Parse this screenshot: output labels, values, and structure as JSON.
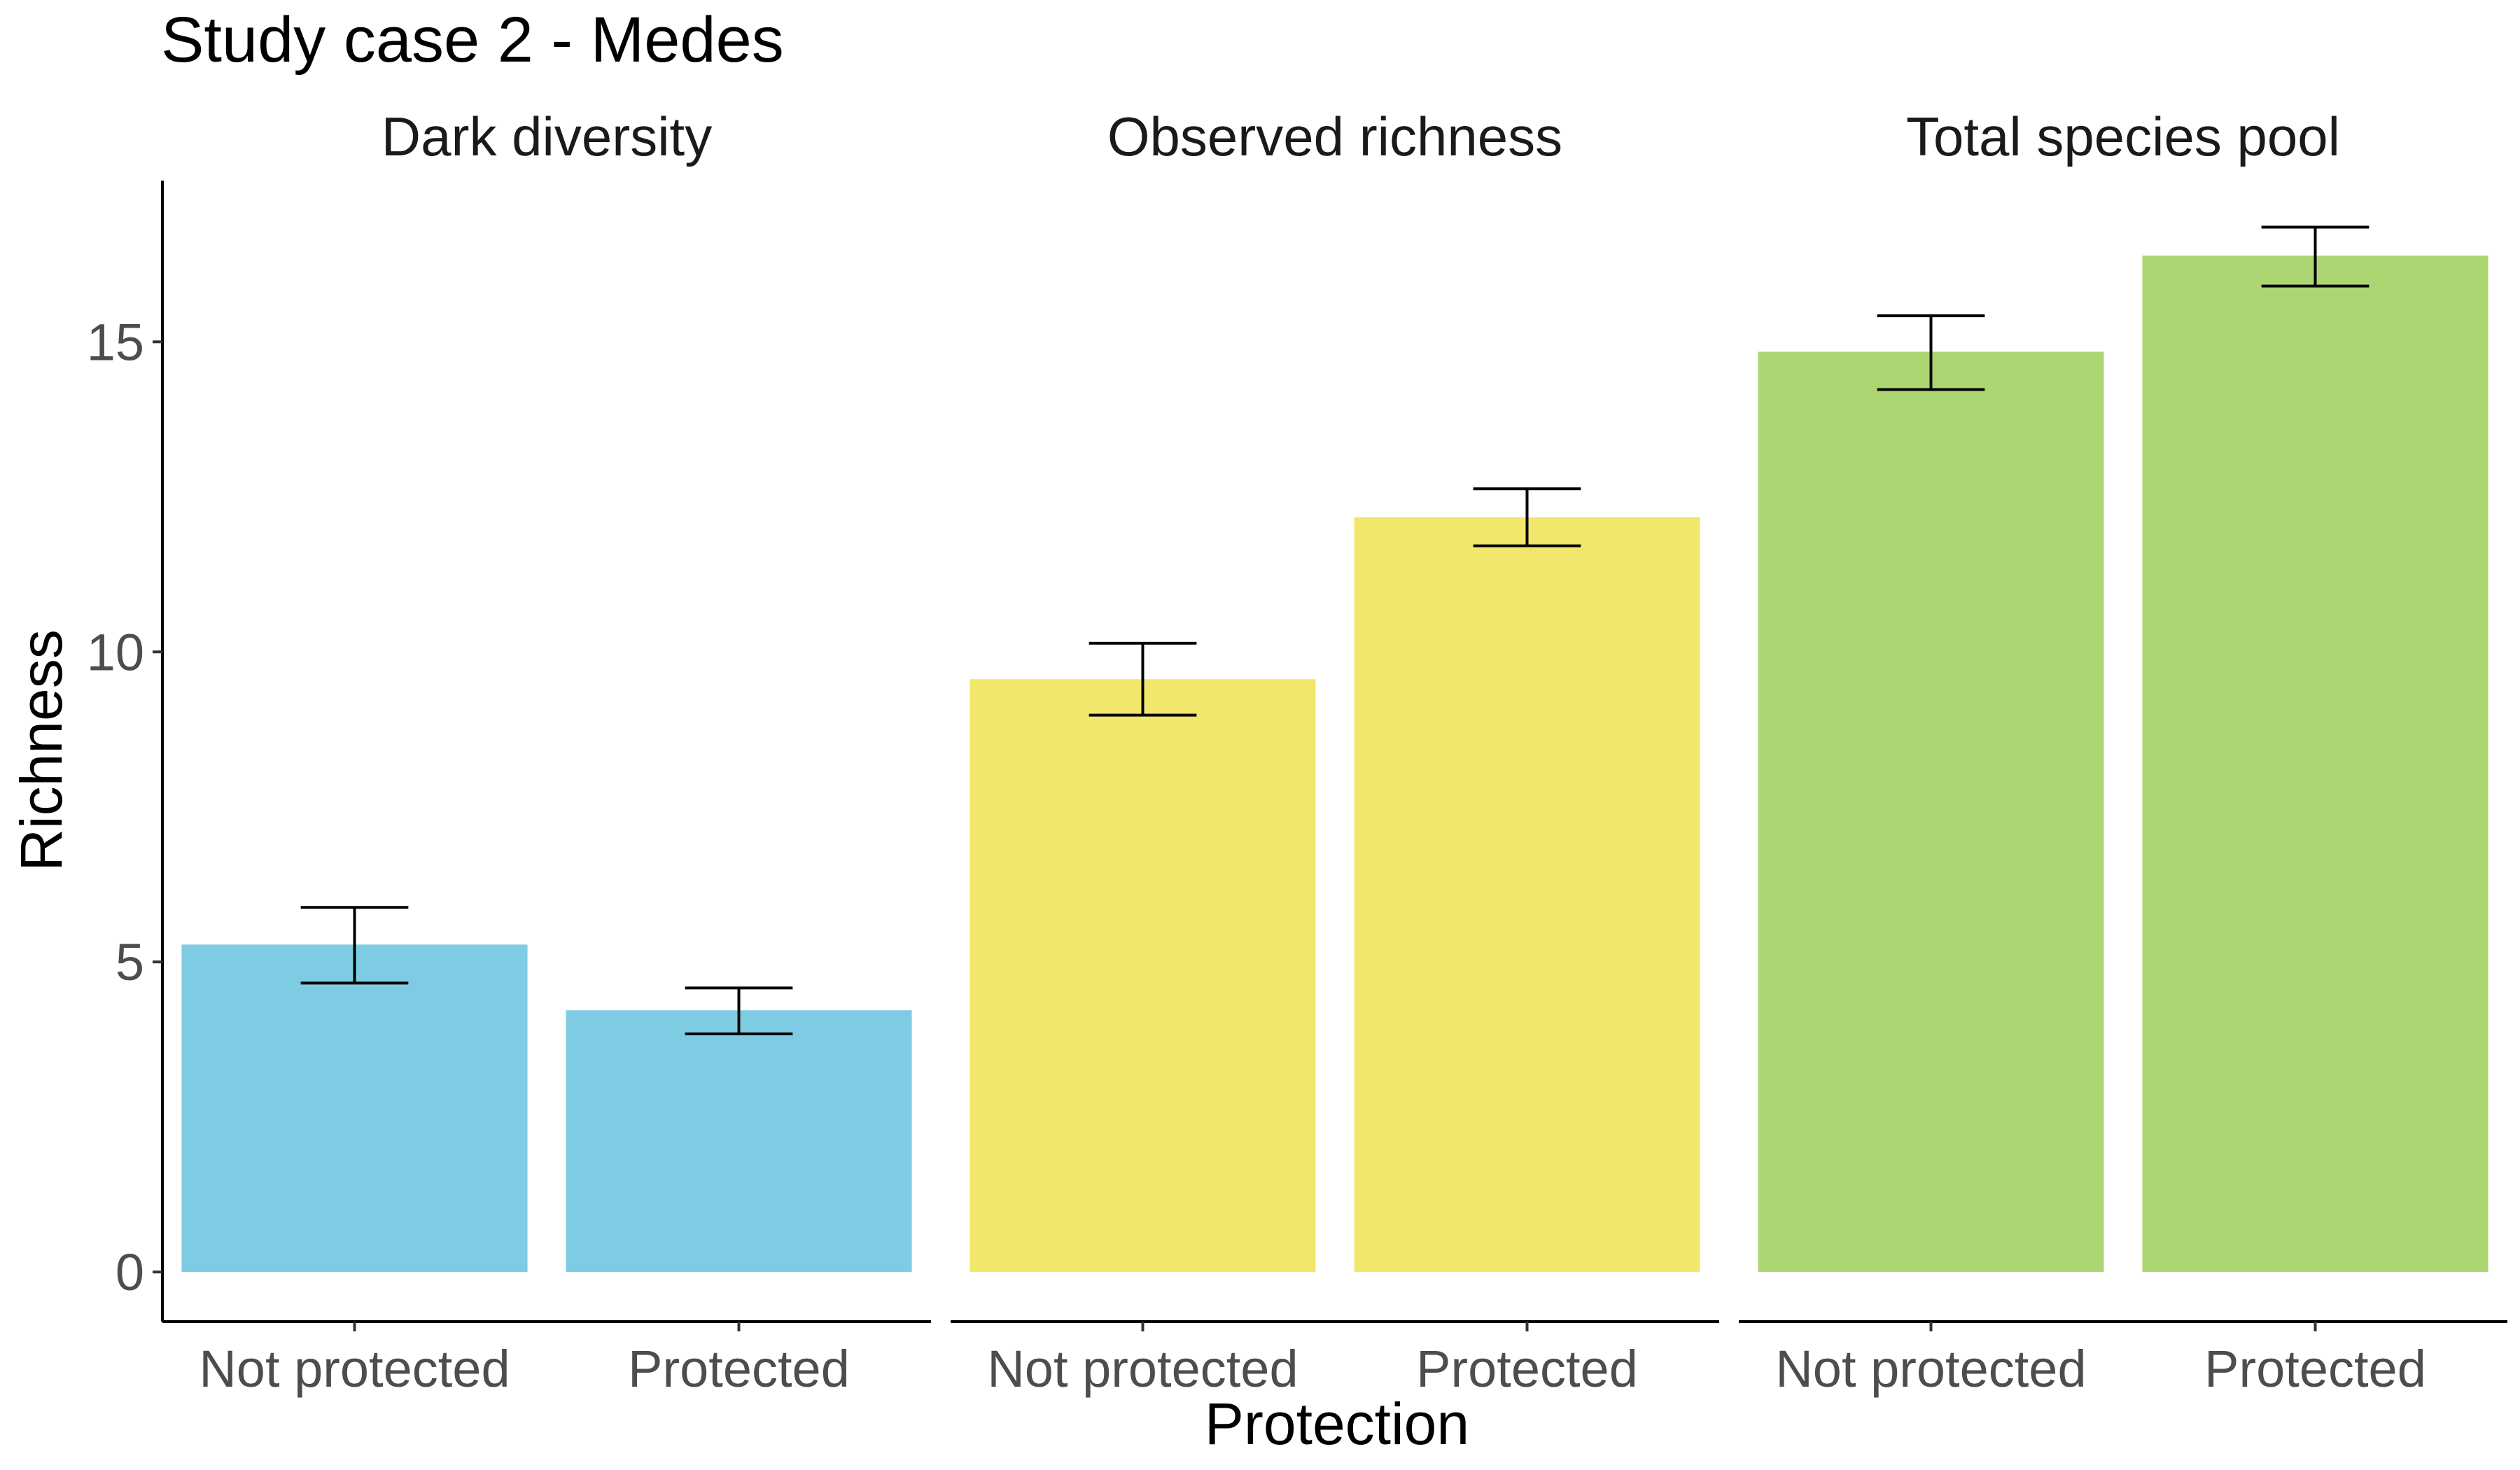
{
  "chart_data": {
    "type": "bar",
    "title": "Study case 2 - Medes",
    "xlabel": "Protection",
    "ylabel": "Richness",
    "ylim": [
      -0.8,
      17.6
    ],
    "yticks": [
      0,
      5,
      10,
      15
    ],
    "grid": false,
    "legend": "none",
    "categories": [
      "Not protected",
      "Protected"
    ],
    "panels": [
      {
        "name": "Dark diversity",
        "color": "#7ECCE3",
        "values": [
          5.28,
          4.22
        ],
        "error_low": [
          4.66,
          3.84
        ],
        "error_high": [
          5.88,
          4.58
        ]
      },
      {
        "name": "Observed richness",
        "color": "#F0E76C",
        "values": [
          9.56,
          12.17
        ],
        "error_low": [
          8.98,
          11.71
        ],
        "error_high": [
          10.14,
          12.63
        ]
      },
      {
        "name": "Total species pool",
        "color": "#ACD672",
        "values": [
          14.84,
          16.39
        ],
        "error_low": [
          14.23,
          15.9
        ],
        "error_high": [
          15.42,
          16.85
        ]
      }
    ]
  }
}
